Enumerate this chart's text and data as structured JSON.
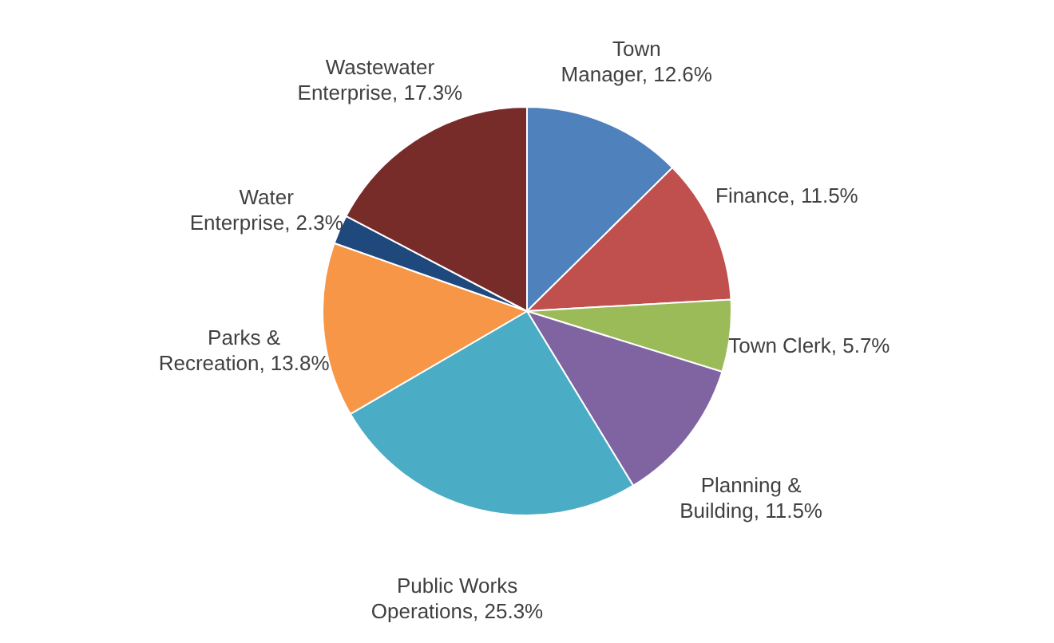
{
  "chart_data": {
    "type": "pie",
    "categories": [
      "Town Manager",
      "Finance",
      "Town Clerk",
      "Planning & Building",
      "Public Works Operations",
      "Parks & Recreation",
      "Water Enterprise",
      "Wastewater Enterprise"
    ],
    "values": [
      12.6,
      11.5,
      5.7,
      11.5,
      25.3,
      13.8,
      2.3,
      17.3
    ],
    "value_labels": [
      "12.6%",
      "11.5%",
      "5.7%",
      "11.5%",
      "25.3%",
      "13.8%",
      "2.3%",
      "17.3%"
    ],
    "colors": [
      "#4f81bd",
      "#c0504d",
      "#9bbb59",
      "#8064a2",
      "#4bacc6",
      "#f79646",
      "#1f497d",
      "#772c2a"
    ]
  }
}
